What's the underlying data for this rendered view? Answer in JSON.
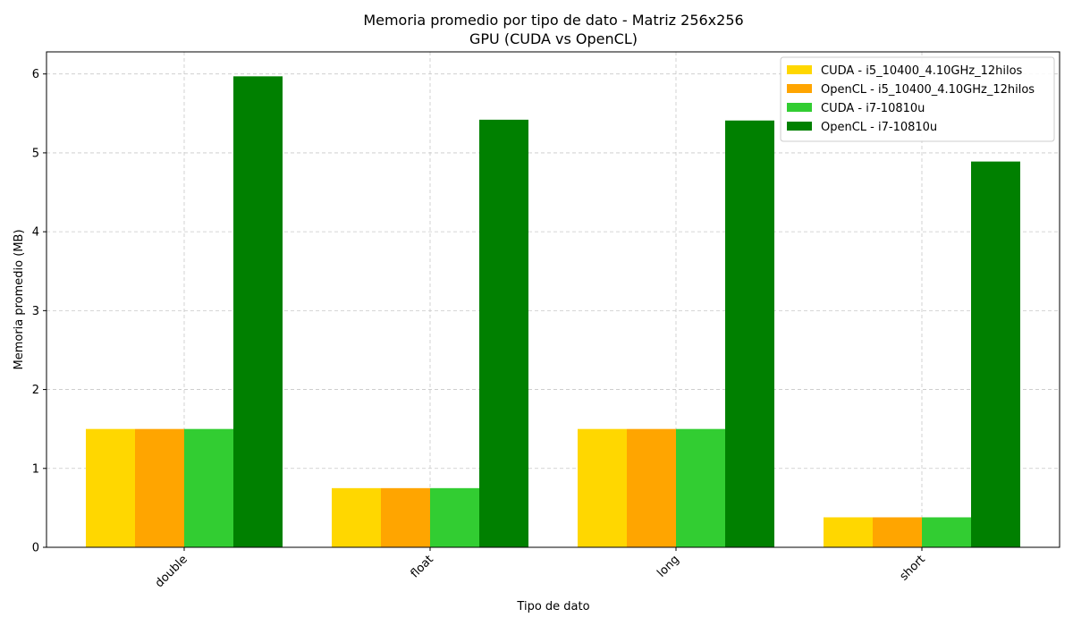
{
  "chart_data": {
    "type": "bar",
    "title": "Memoria promedio por tipo de dato - Matriz 256x256",
    "subtitle": "GPU (CUDA vs OpenCL)",
    "xlabel": "Tipo de dato",
    "ylabel": "Memoria promedio (MB)",
    "categories": [
      "double",
      "float",
      "long",
      "short"
    ],
    "ylim": [
      0,
      6.28
    ],
    "yticks": [
      0,
      1,
      2,
      3,
      4,
      5,
      6
    ],
    "grid": true,
    "legend_position": "top-right",
    "series": [
      {
        "name": "CUDA - i5_10400_4.10GHz_12hilos",
        "color": "#ffd700",
        "values": [
          1.5,
          0.75,
          1.5,
          0.38
        ]
      },
      {
        "name": "OpenCL - i5_10400_4.10GHz_12hilos",
        "color": "#ffa500",
        "values": [
          1.5,
          0.75,
          1.5,
          0.38
        ]
      },
      {
        "name": "CUDA - i7-10810u",
        "color": "#32cd32",
        "values": [
          1.5,
          0.75,
          1.5,
          0.38
        ]
      },
      {
        "name": "OpenCL - i7-10810u",
        "color": "#008000",
        "values": [
          5.97,
          5.42,
          5.41,
          4.89
        ]
      }
    ]
  }
}
